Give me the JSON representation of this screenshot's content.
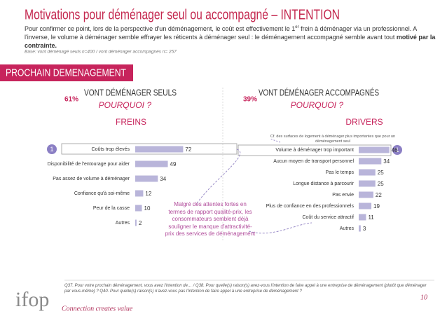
{
  "slide": {
    "title": "Motivations pour déménager seul ou accompagné – INTENTION",
    "intro_1": "Pour confirmer ce point, lors de la perspective d'un déménagement, le coût est effectivement le 1",
    "intro_sup": "er",
    "intro_2": " frein à déménager via un professionnel. A l'inverse, le volume à déménager semble effrayer les réticents à déménager seul : le déménagement accompagné semble avant tout ",
    "intro_bold": "motivé par la contrainte.",
    "base": "Base:  vont déménagé seuls  n=400 / vont déménager accompagnés n= 257",
    "banner": "PROCHAIN DEMENAGEMENT",
    "left_share": "61%",
    "left_heading": "VONT DÉMÉNAGER SEULS",
    "left_question": "POURQUOI ?",
    "left_badge": "1",
    "right_share": "39%",
    "right_heading": "VONT DÉMÉNAGER ACCOMPAGNÉS",
    "right_question": "POURQUOI ?",
    "right_badge": "1",
    "right_note": "Cf. des surfaces de logement à déménager plus importantes que pour un déménagement seul",
    "callout": "Malgré des attentes fortes en termes de rapport qualité-prix, les consommateurs semblent déjà souligner le manque d'attractivité-prix des services de déménagement",
    "footnote": "Q37. Pour votre prochain déménagement, vous avez l'intention de… / Q38. Pour quelle(s) raison(s) avez-vous l'intention de faire appel à une entreprise de déménagement (plutôt que déménager par vous-même) ? Q40. Pour quelle(s) raison(s) n'avez-vous pas l'intention de faire appel à une entreprise de déménagement ?",
    "logo": "ifop",
    "tagline": "Connection creates value",
    "page": "10"
  },
  "chart_data": [
    {
      "type": "bar",
      "orientation": "horizontal",
      "title": "FREINS",
      "categories": [
        "Coûts trop élevés",
        "Disponibilité de l'entourage pour aider",
        "Pas assez de volume à déménager",
        "Confiance qu'à soi-même",
        "Peur de la casse",
        "Autres"
      ],
      "values": [
        72,
        49,
        34,
        12,
        10,
        2
      ],
      "color": "#b9b5da"
    },
    {
      "type": "bar",
      "orientation": "horizontal",
      "title": "DRIVERS",
      "categories": [
        "Volume à déménager trop important",
        "Aucun moyen de transport personnel",
        "Pas le temps",
        "Longue distance à parcourir",
        "Pas envie",
        "Plus de confiance en des professionnels",
        "Coût du service attractif",
        "Autres"
      ],
      "values": [
        46,
        34,
        25,
        25,
        22,
        19,
        11,
        3
      ],
      "color": "#b9b5da"
    }
  ]
}
